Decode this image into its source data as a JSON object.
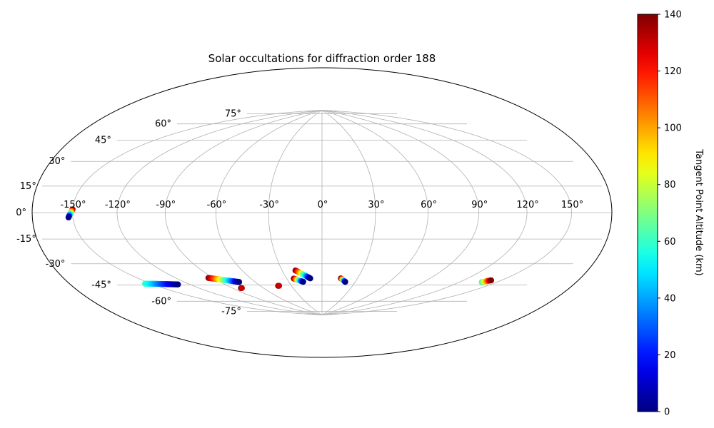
{
  "chart_data": {
    "type": "scatter",
    "projection": "hammer",
    "title": "Solar occultations for diffraction order 188",
    "grid": true,
    "lon_ticks": [
      -150,
      -120,
      -90,
      -60,
      -30,
      0,
      30,
      60,
      90,
      120,
      150
    ],
    "lat_ticks": [
      -75,
      -60,
      -45,
      -30,
      -15,
      0,
      15,
      30,
      45,
      60,
      75
    ],
    "lon_tick_labels": [
      "-150°",
      "-120°",
      "-90°",
      "-60°",
      "-30°",
      "0°",
      "30°",
      "60°",
      "90°",
      "120°",
      "150°"
    ],
    "lat_tick_labels": [
      "-75°",
      "-60°",
      "-45°",
      "-30°",
      "-15°",
      "0°",
      "15°",
      "30°",
      "45°",
      "60°",
      "75°"
    ],
    "colorbar": {
      "label": "Tangent Point Altitude (km)",
      "colormap": "jet",
      "range": [
        0,
        140
      ],
      "ticks": [
        0,
        20,
        40,
        60,
        80,
        100,
        120,
        140
      ],
      "tick_labels": [
        "0",
        "20",
        "40",
        "60",
        "80",
        "100",
        "120",
        "140"
      ]
    },
    "tracks": [
      {
        "start": {
          "lon": -150,
          "lat": 2,
          "alt": 140
        },
        "end": {
          "lon": -153,
          "lat": -3,
          "alt": 0
        }
      },
      {
        "start": {
          "lon": -155,
          "lat": -48,
          "alt": 60
        },
        "end": {
          "lon": -130,
          "lat": -52,
          "alt": 0
        }
      },
      {
        "start": {
          "lon": -94,
          "lat": -50,
          "alt": 140
        },
        "end": {
          "lon": -74,
          "lat": -55,
          "alt": 0
        }
      },
      {
        "start": {
          "lon": -82,
          "lat": -60,
          "alt": 140
        },
        "end": {
          "lon": -81,
          "lat": -60,
          "alt": 130
        }
      },
      {
        "start": {
          "lon": -43,
          "lat": -60,
          "alt": 140
        },
        "end": {
          "lon": -42,
          "lat": -60,
          "alt": 130
        }
      },
      {
        "start": {
          "lon": -24,
          "lat": -54,
          "alt": 140
        },
        "end": {
          "lon": -17,
          "lat": -57,
          "alt": 0
        }
      },
      {
        "start": {
          "lon": -20,
          "lat": -47,
          "alt": 140
        },
        "end": {
          "lon": -10,
          "lat": -54,
          "alt": 0
        }
      },
      {
        "start": {
          "lon": 16,
          "lat": -54,
          "alt": 140
        },
        "end": {
          "lon": 21,
          "lat": -57,
          "alt": 0
        }
      },
      {
        "start": {
          "lon": 138,
          "lat": -49,
          "alt": 60
        },
        "end": {
          "lon": 142,
          "lat": -47,
          "alt": 140
        }
      }
    ]
  }
}
